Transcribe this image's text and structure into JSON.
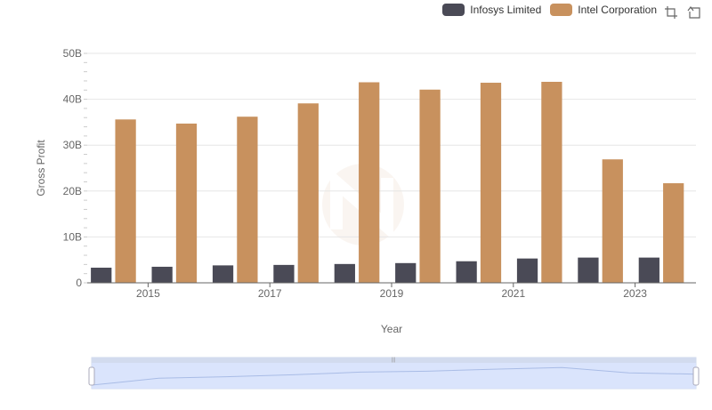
{
  "legend": {
    "items": [
      {
        "name": "Infosys Limited",
        "color": "#4a4a56"
      },
      {
        "name": "Intel Corporation",
        "color": "#c8915e"
      }
    ]
  },
  "toolbox": {
    "zoom_icon": "zoom-icon",
    "restore_icon": "restore-icon"
  },
  "chart_data": {
    "type": "bar",
    "x": [
      2014,
      2015,
      2016,
      2017,
      2018,
      2019,
      2020,
      2021,
      2022,
      2023
    ],
    "x_tick_labels": [
      "2015",
      "2017",
      "2019",
      "2021",
      "2023"
    ],
    "series": [
      {
        "name": "Infosys Limited",
        "color": "#4a4a56",
        "values": [
          3.3,
          3.5,
          3.8,
          3.9,
          4.1,
          4.3,
          4.7,
          5.3,
          5.5,
          5.5
        ]
      },
      {
        "name": "Intel Corporation",
        "color": "#c8915e",
        "values": [
          35.6,
          34.7,
          36.2,
          39.1,
          43.7,
          42.1,
          43.6,
          43.8,
          26.9,
          21.7
        ]
      }
    ],
    "xlabel": "Year",
    "ylabel": "Gross Profit",
    "ylim": [
      0,
      50
    ],
    "y_ticks": [
      0,
      10,
      20,
      30,
      40,
      50
    ],
    "y_tick_labels": [
      "0",
      "10B",
      "20B",
      "30B",
      "40B",
      "50B"
    ],
    "grid": true,
    "legend_position": "top-right"
  }
}
